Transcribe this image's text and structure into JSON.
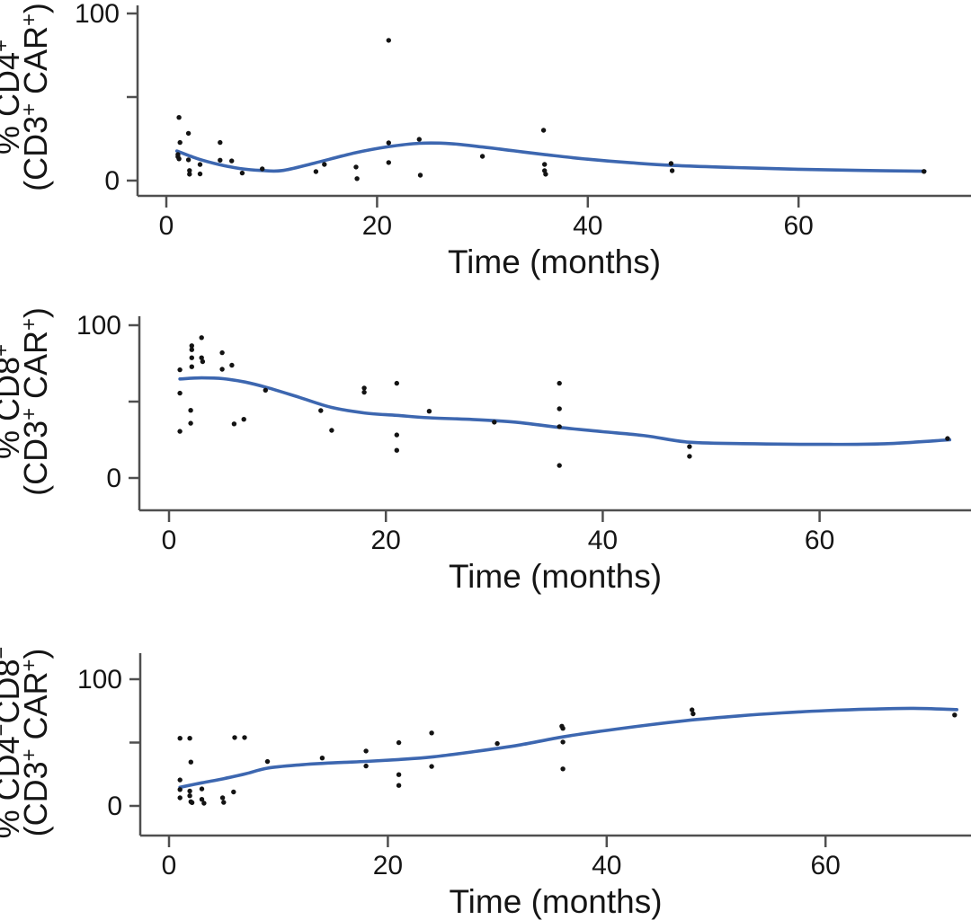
{
  "figure": {
    "background_color": "#ffffff",
    "axis_color": "#4f4f4f",
    "dot_color": "#131313",
    "curve_color": "#3d67b0",
    "text_color": "#151515"
  },
  "chart_data": [
    {
      "type": "scatter",
      "panel": "cd4",
      "ylabel_line1": "% CD4⁺",
      "ylabel_line2": "(CD3⁺ CAR⁺)",
      "xlabel": "Time (months)",
      "xticks": [
        0,
        20,
        40,
        60
      ],
      "yticks": [
        0,
        50,
        100
      ],
      "ytick_labels": [
        "0",
        "",
        "100"
      ],
      "xlim": [
        -3,
        76
      ],
      "ylim": [
        0,
        110
      ],
      "grid": false,
      "legend": "none",
      "points": [
        [
          1.2,
          37.8
        ],
        [
          1.3,
          22.8
        ],
        [
          1.1,
          15.6
        ],
        [
          1.1,
          14.3
        ],
        [
          1.2,
          13.0
        ],
        [
          2.1,
          28.3
        ],
        [
          2.1,
          12.4
        ],
        [
          2.2,
          6.0
        ],
        [
          2.2,
          3.8
        ],
        [
          3.2,
          9.6
        ],
        [
          3.2,
          4.0
        ],
        [
          5.1,
          22.8
        ],
        [
          5.1,
          12.2
        ],
        [
          6.2,
          11.8
        ],
        [
          7.2,
          4.5
        ],
        [
          9.1,
          7.0
        ],
        [
          14.2,
          5.4
        ],
        [
          15.0,
          9.7
        ],
        [
          18.0,
          8.1
        ],
        [
          18.1,
          1.2
        ],
        [
          21.1,
          83.9
        ],
        [
          21.1,
          22.6
        ],
        [
          21.1,
          10.8
        ],
        [
          24.0,
          24.7
        ],
        [
          24.1,
          3.2
        ],
        [
          30.0,
          14.5
        ],
        [
          35.8,
          30.1
        ],
        [
          35.9,
          9.7
        ],
        [
          35.9,
          5.9
        ],
        [
          36.0,
          3.8
        ],
        [
          47.9,
          10.2
        ],
        [
          48.0,
          5.9
        ],
        [
          71.9,
          5.5
        ]
      ],
      "smooth_line": [
        [
          1,
          17.7
        ],
        [
          3,
          13.0
        ],
        [
          5,
          9.6
        ],
        [
          7,
          7.2
        ],
        [
          9,
          6.1
        ],
        [
          11,
          6.0
        ],
        [
          14,
          10.4
        ],
        [
          18,
          16.7
        ],
        [
          21,
          20.2
        ],
        [
          24,
          22.3
        ],
        [
          27,
          22.1
        ],
        [
          30,
          20.1
        ],
        [
          33,
          17.8
        ],
        [
          36,
          15.5
        ],
        [
          40,
          12.8
        ],
        [
          44,
          10.7
        ],
        [
          48,
          9.1
        ],
        [
          54,
          7.8
        ],
        [
          60,
          6.8
        ],
        [
          66,
          6.1
        ],
        [
          72,
          5.6
        ]
      ]
    },
    {
      "type": "scatter",
      "panel": "cd8",
      "ylabel_line1": "% CD8⁺",
      "ylabel_line2": "(CD3⁺ CAR⁺)",
      "xlabel": "Time (months)",
      "xticks": [
        0,
        20,
        40,
        60
      ],
      "yticks": [
        0,
        50,
        100
      ],
      "ytick_labels": [
        "0",
        "",
        "100"
      ],
      "xlim": [
        -3,
        76
      ],
      "ylim": [
        0,
        110
      ],
      "grid": false,
      "legend": "none",
      "points": [
        [
          1.0,
          70.8
        ],
        [
          1.0,
          55.5
        ],
        [
          1.0,
          30.5
        ],
        [
          2.1,
          86.6
        ],
        [
          2.1,
          84.0
        ],
        [
          2.1,
          78.7
        ],
        [
          2.1,
          72.8
        ],
        [
          2.0,
          44.3
        ],
        [
          2.0,
          35.8
        ],
        [
          3.0,
          91.9
        ],
        [
          3.0,
          78.7
        ],
        [
          3.1,
          76.2
        ],
        [
          4.9,
          82.0
        ],
        [
          4.9,
          71.2
        ],
        [
          5.8,
          73.8
        ],
        [
          6.0,
          35.4
        ],
        [
          6.9,
          38.4
        ],
        [
          8.9,
          57.5
        ],
        [
          14.0,
          44.1
        ],
        [
          15.0,
          31.2
        ],
        [
          18.0,
          58.9
        ],
        [
          18.0,
          56.1
        ],
        [
          21.0,
          62.0
        ],
        [
          21.0,
          28.2
        ],
        [
          21.0,
          18.1
        ],
        [
          24.0,
          43.7
        ],
        [
          30.0,
          36.5
        ],
        [
          36.0,
          62.0
        ],
        [
          36.0,
          45.3
        ],
        [
          36.0,
          33.6
        ],
        [
          36.0,
          8.2
        ],
        [
          48.0,
          20.5
        ],
        [
          48.0,
          14.2
        ],
        [
          71.8,
          25.8
        ]
      ],
      "smooth_line": [
        [
          1,
          64.8
        ],
        [
          3,
          65.5
        ],
        [
          5,
          65.0
        ],
        [
          7,
          62.8
        ],
        [
          9,
          59.3
        ],
        [
          12,
          52.8
        ],
        [
          15,
          46.2
        ],
        [
          18,
          42.6
        ],
        [
          21,
          41.0
        ],
        [
          24,
          39.4
        ],
        [
          28,
          38.3
        ],
        [
          32,
          36.5
        ],
        [
          36,
          33.1
        ],
        [
          40,
          30.3
        ],
        [
          44,
          27.6
        ],
        [
          48,
          23.4
        ],
        [
          54,
          22.4
        ],
        [
          60,
          22.0
        ],
        [
          66,
          22.4
        ],
        [
          72,
          25.0
        ]
      ]
    },
    {
      "type": "scatter",
      "panel": "cd4neg-cd8neg",
      "ylabel_line1": "% CD4⁻CD8⁻",
      "ylabel_line2": "(CD3⁺ CAR⁺)",
      "xlabel": "Time (months)",
      "xticks": [
        0,
        20,
        40,
        60
      ],
      "yticks": [
        0,
        50,
        100
      ],
      "ytick_labels": [
        "0",
        "",
        "100"
      ],
      "xlim": [
        -3,
        76
      ],
      "ylim": [
        0,
        122
      ],
      "grid": false,
      "legend": "none",
      "points": [
        [
          1.0,
          53.4
        ],
        [
          1.0,
          20.5
        ],
        [
          1.0,
          12.9
        ],
        [
          1.0,
          6.4
        ],
        [
          1.9,
          53.4
        ],
        [
          2.0,
          34.6
        ],
        [
          1.9,
          11.7
        ],
        [
          1.9,
          8.0
        ],
        [
          2.0,
          3.3
        ],
        [
          2.1,
          2.6
        ],
        [
          3.0,
          13.4
        ],
        [
          3.0,
          5.2
        ],
        [
          3.2,
          2.1
        ],
        [
          4.9,
          6.4
        ],
        [
          5.0,
          2.8
        ],
        [
          6.0,
          54.0
        ],
        [
          5.9,
          11.0
        ],
        [
          6.9,
          54.0
        ],
        [
          9.0,
          35.0
        ],
        [
          14.0,
          37.8
        ],
        [
          18.0,
          43.3
        ],
        [
          18.0,
          31.5
        ],
        [
          21.0,
          49.9
        ],
        [
          21.0,
          24.7
        ],
        [
          21.0,
          16.2
        ],
        [
          24.0,
          57.6
        ],
        [
          24.0,
          31.1
        ],
        [
          30.0,
          49.2
        ],
        [
          35.9,
          62.9
        ],
        [
          36.0,
          61.2
        ],
        [
          36.0,
          50.4
        ],
        [
          36.0,
          29.2
        ],
        [
          47.8,
          75.8
        ],
        [
          47.9,
          72.7
        ],
        [
          71.8,
          71.8
        ]
      ],
      "smooth_line": [
        [
          1,
          14.7
        ],
        [
          3,
          18.2
        ],
        [
          5,
          21.5
        ],
        [
          7,
          25.3
        ],
        [
          9,
          29.8
        ],
        [
          12,
          32.4
        ],
        [
          15,
          34.0
        ],
        [
          18,
          35.1
        ],
        [
          21,
          36.6
        ],
        [
          24,
          38.6
        ],
        [
          28,
          43.0
        ],
        [
          32,
          48.0
        ],
        [
          36,
          54.5
        ],
        [
          40,
          59.6
        ],
        [
          44,
          64.1
        ],
        [
          48,
          68.0
        ],
        [
          52,
          71.0
        ],
        [
          56,
          73.4
        ],
        [
          60,
          75.2
        ],
        [
          64,
          76.4
        ],
        [
          68,
          77.0
        ],
        [
          72,
          76.0
        ]
      ]
    }
  ]
}
